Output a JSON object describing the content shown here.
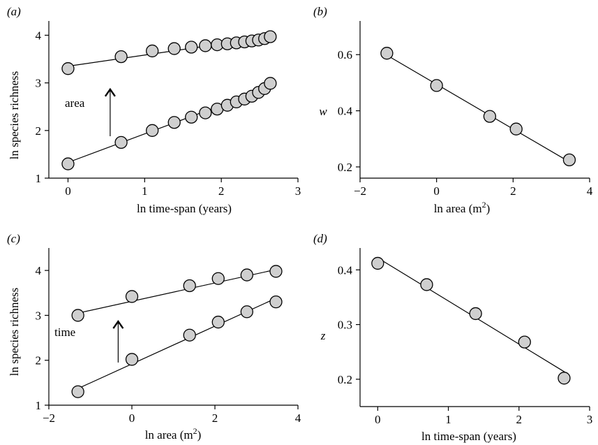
{
  "chart_data": [
    {
      "panel": "(a)",
      "type": "scatter",
      "xlabel": "ln time-span (years)",
      "ylabel": "ln species richness",
      "xlim": [
        -0.25,
        3.0
      ],
      "ylim": [
        1.0,
        4.3
      ],
      "xticks": [
        0,
        1,
        2,
        3
      ],
      "yticks": [
        1,
        2,
        3,
        4
      ],
      "annotation": "area",
      "arrow": {
        "x": 0.55,
        "y_from": 1.88,
        "y_to": 2.85
      },
      "series": [
        {
          "x": [
            0,
            0.693,
            1.099,
            1.386,
            1.609,
            1.792,
            1.946,
            2.079,
            2.197,
            2.303,
            2.398,
            2.485,
            2.565,
            2.639
          ],
          "y": [
            3.3,
            3.55,
            3.67,
            3.72,
            3.75,
            3.78,
            3.8,
            3.82,
            3.84,
            3.86,
            3.88,
            3.9,
            3.93,
            3.97
          ],
          "fit": {
            "x": [
              0,
              2.65
            ],
            "y": [
              3.35,
              3.97
            ]
          }
        },
        {
          "x": [
            0,
            0.693,
            1.099,
            1.386,
            1.609,
            1.792,
            1.946,
            2.079,
            2.197,
            2.303,
            2.398,
            2.485,
            2.565,
            2.639
          ],
          "y": [
            1.3,
            1.75,
            2.0,
            2.17,
            2.28,
            2.37,
            2.45,
            2.53,
            2.6,
            2.66,
            2.72,
            2.8,
            2.88,
            2.99
          ],
          "fit": {
            "x": [
              0,
              2.65
            ],
            "y": [
              1.33,
              2.92
            ]
          }
        }
      ]
    },
    {
      "panel": "(b)",
      "type": "scatter",
      "xlabel": "ln area (m",
      "xlabel_sup": "2",
      "xlabel_end": ")",
      "ylabel": "w",
      "xlim": [
        -2.0,
        4.0
      ],
      "ylim": [
        0.16,
        0.72
      ],
      "xticks": [
        -2,
        0,
        2,
        4
      ],
      "xticklabels": [
        "−2",
        "0",
        "2",
        "4"
      ],
      "yticks": [
        0.2,
        0.4,
        0.6
      ],
      "yticklabels": [
        "0.2",
        "0.4",
        "0.6"
      ],
      "series": [
        {
          "x": [
            -1.3,
            0.0,
            1.39,
            2.08,
            3.47
          ],
          "y": [
            0.605,
            0.49,
            0.38,
            0.335,
            0.225
          ],
          "fit": {
            "x": [
              -1.3,
              3.47
            ],
            "y": [
              0.598,
              0.218
            ]
          }
        }
      ]
    },
    {
      "panel": "(c)",
      "type": "scatter",
      "xlabel": "ln area (m",
      "xlabel_sup": "2",
      "xlabel_end": ")",
      "ylabel": "ln species richness",
      "xlim": [
        -2.0,
        4.0
      ],
      "ylim": [
        1.0,
        4.5
      ],
      "xticks": [
        -2,
        0,
        2,
        4
      ],
      "xticklabels": [
        "−2",
        "0",
        "2",
        "4"
      ],
      "yticks": [
        1,
        2,
        3,
        4
      ],
      "annotation": "time",
      "arrow": {
        "x": -0.33,
        "y_from": 1.95,
        "y_to": 2.85
      },
      "series": [
        {
          "x": [
            -1.3,
            0.0,
            1.39,
            2.08,
            2.77,
            3.47
          ],
          "y": [
            3.0,
            3.42,
            3.66,
            3.82,
            3.9,
            3.98
          ],
          "fit": {
            "x": [
              -1.3,
              3.47
            ],
            "y": [
              3.05,
              4.02
            ]
          }
        },
        {
          "x": [
            -1.3,
            0.0,
            1.39,
            2.08,
            2.77,
            3.47
          ],
          "y": [
            1.3,
            2.02,
            2.56,
            2.85,
            3.08,
            3.3
          ],
          "fit": {
            "x": [
              -1.3,
              3.47
            ],
            "y": [
              1.37,
              3.38
            ]
          }
        }
      ]
    },
    {
      "panel": "(d)",
      "type": "scatter",
      "xlabel": "ln time-span (years)",
      "ylabel": "z",
      "xlim": [
        -0.25,
        3.0
      ],
      "ylim": [
        0.15,
        0.44
      ],
      "xticks": [
        0,
        1,
        2,
        3
      ],
      "yticks": [
        0.2,
        0.3,
        0.4
      ],
      "yticklabels": [
        "0.2",
        "0.3",
        "0.4"
      ],
      "series": [
        {
          "x": [
            0,
            0.693,
            1.386,
            2.079,
            2.639
          ],
          "y": [
            0.412,
            0.373,
            0.32,
            0.268,
            0.202
          ],
          "fit": {
            "x": [
              0,
              2.65
            ],
            "y": [
              0.422,
              0.213
            ]
          }
        }
      ]
    }
  ]
}
